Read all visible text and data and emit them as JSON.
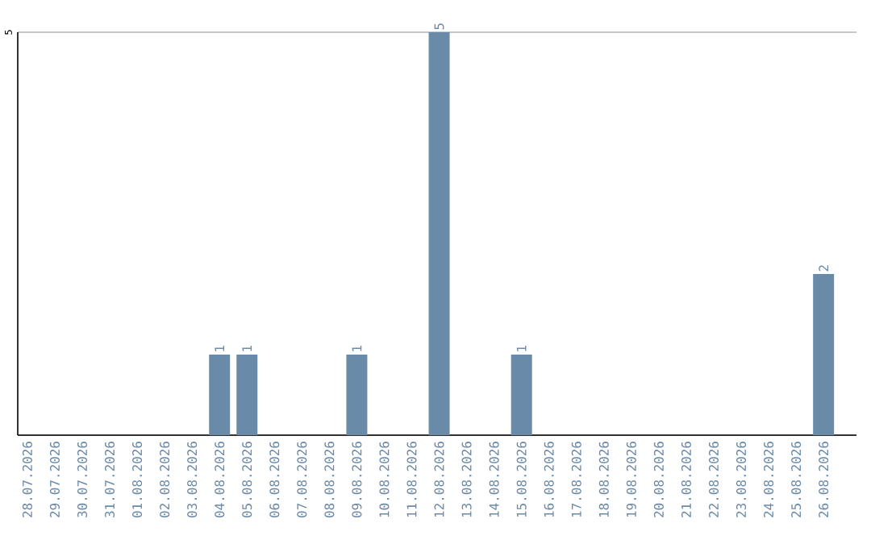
{
  "chart_data": {
    "type": "bar",
    "categories": [
      "28.07.2026",
      "29.07.2026",
      "30.07.2026",
      "31.07.2026",
      "01.08.2026",
      "02.08.2026",
      "03.08.2026",
      "04.08.2026",
      "05.08.2026",
      "06.08.2026",
      "07.08.2026",
      "08.08.2026",
      "09.08.2026",
      "10.08.2026",
      "11.08.2026",
      "12.08.2026",
      "13.08.2026",
      "14.08.2026",
      "15.08.2026",
      "16.08.2026",
      "17.08.2026",
      "18.08.2026",
      "19.08.2026",
      "20.08.2026",
      "21.08.2026",
      "22.08.2026",
      "23.08.2026",
      "24.08.2026",
      "25.08.2026",
      "26.08.2026"
    ],
    "values": [
      0,
      0,
      0,
      0,
      0,
      0,
      0,
      1,
      1,
      0,
      0,
      0,
      1,
      0,
      0,
      5,
      0,
      0,
      1,
      0,
      0,
      0,
      0,
      0,
      0,
      0,
      0,
      0,
      0,
      2
    ],
    "value_labels": [
      null,
      null,
      null,
      null,
      null,
      null,
      null,
      "1",
      "1",
      null,
      null,
      null,
      "1",
      null,
      null,
      "5",
      null,
      null,
      "1",
      null,
      null,
      null,
      null,
      null,
      null,
      null,
      null,
      null,
      null,
      "2"
    ],
    "color": "#6a8aaa",
    "ylim": [
      0,
      5
    ],
    "yticks": [
      {
        "value": 0,
        "label": null
      },
      5
    ],
    "grid": "y"
  }
}
